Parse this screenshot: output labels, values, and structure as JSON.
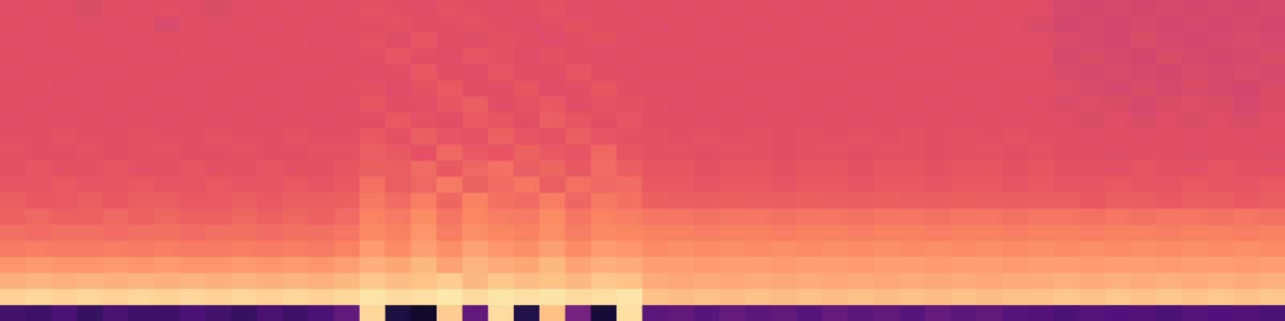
{
  "chart_data": {
    "type": "heatmap",
    "color": "magma",
    "zlim": [
      0,
      1
    ],
    "tick_labels": false,
    "cells": [
      [
        0.61,
        0.62,
        0.61,
        0.6,
        0.62,
        0.61,
        0.62,
        0.61,
        0.6,
        0.61,
        0.62,
        0.61,
        0.62,
        0.61,
        0.63,
        0.62,
        0.61,
        0.63,
        0.62,
        0.61,
        0.62,
        0.63,
        0.61,
        0.62,
        0.61,
        0.62,
        0.61,
        0.62,
        0.61,
        0.62,
        0.61,
        0.62,
        0.61,
        0.62,
        0.61,
        0.62,
        0.61,
        0.62,
        0.61,
        0.62,
        0.61,
        0.59,
        0.58,
        0.59,
        0.58,
        0.59,
        0.58,
        0.59,
        0.58,
        0.59
      ],
      [
        0.62,
        0.61,
        0.62,
        0.61,
        0.61,
        0.62,
        0.6,
        0.62,
        0.61,
        0.62,
        0.61,
        0.62,
        0.61,
        0.62,
        0.62,
        0.63,
        0.62,
        0.62,
        0.63,
        0.62,
        0.61,
        0.62,
        0.63,
        0.62,
        0.62,
        0.61,
        0.62,
        0.61,
        0.62,
        0.61,
        0.62,
        0.61,
        0.62,
        0.61,
        0.62,
        0.61,
        0.62,
        0.61,
        0.62,
        0.61,
        0.6,
        0.58,
        0.59,
        0.58,
        0.59,
        0.58,
        0.59,
        0.58,
        0.59,
        0.58
      ],
      [
        0.61,
        0.61,
        0.62,
        0.62,
        0.61,
        0.61,
        0.62,
        0.62,
        0.61,
        0.61,
        0.62,
        0.62,
        0.61,
        0.61,
        0.63,
        0.61,
        0.64,
        0.62,
        0.61,
        0.63,
        0.62,
        0.61,
        0.62,
        0.63,
        0.61,
        0.62,
        0.62,
        0.61,
        0.61,
        0.62,
        0.62,
        0.61,
        0.61,
        0.62,
        0.62,
        0.61,
        0.61,
        0.62,
        0.62,
        0.61,
        0.61,
        0.6,
        0.59,
        0.58,
        0.6,
        0.59,
        0.58,
        0.59,
        0.6,
        0.59
      ],
      [
        0.62,
        0.61,
        0.61,
        0.62,
        0.62,
        0.61,
        0.61,
        0.62,
        0.62,
        0.61,
        0.61,
        0.62,
        0.62,
        0.61,
        0.62,
        0.64,
        0.62,
        0.61,
        0.64,
        0.63,
        0.61,
        0.63,
        0.62,
        0.61,
        0.62,
        0.61,
        0.61,
        0.62,
        0.62,
        0.61,
        0.61,
        0.62,
        0.62,
        0.61,
        0.61,
        0.62,
        0.62,
        0.61,
        0.61,
        0.62,
        0.62,
        0.59,
        0.6,
        0.59,
        0.58,
        0.6,
        0.59,
        0.58,
        0.59,
        0.6
      ],
      [
        0.61,
        0.62,
        0.62,
        0.61,
        0.61,
        0.62,
        0.62,
        0.61,
        0.61,
        0.62,
        0.62,
        0.61,
        0.61,
        0.62,
        0.61,
        0.62,
        0.65,
        0.62,
        0.61,
        0.64,
        0.62,
        0.62,
        0.64,
        0.62,
        0.61,
        0.62,
        0.62,
        0.61,
        0.61,
        0.62,
        0.62,
        0.61,
        0.61,
        0.62,
        0.62,
        0.61,
        0.61,
        0.62,
        0.62,
        0.61,
        0.61,
        0.6,
        0.59,
        0.6,
        0.59,
        0.58,
        0.6,
        0.59,
        0.6,
        0.59
      ],
      [
        0.62,
        0.62,
        0.61,
        0.61,
        0.62,
        0.62,
        0.61,
        0.61,
        0.62,
        0.62,
        0.61,
        0.61,
        0.62,
        0.62,
        0.63,
        0.61,
        0.63,
        0.65,
        0.62,
        0.62,
        0.64,
        0.61,
        0.62,
        0.64,
        0.62,
        0.61,
        0.61,
        0.62,
        0.62,
        0.61,
        0.61,
        0.62,
        0.62,
        0.61,
        0.61,
        0.62,
        0.62,
        0.61,
        0.61,
        0.62,
        0.62,
        0.61,
        0.6,
        0.59,
        0.6,
        0.59,
        0.6,
        0.59,
        0.58,
        0.6
      ],
      [
        0.62,
        0.61,
        0.62,
        0.61,
        0.62,
        0.61,
        0.62,
        0.61,
        0.62,
        0.61,
        0.62,
        0.61,
        0.62,
        0.61,
        0.64,
        0.62,
        0.62,
        0.64,
        0.66,
        0.62,
        0.63,
        0.65,
        0.62,
        0.63,
        0.63,
        0.62,
        0.61,
        0.62,
        0.61,
        0.62,
        0.61,
        0.62,
        0.61,
        0.62,
        0.61,
        0.62,
        0.61,
        0.62,
        0.61,
        0.62,
        0.61,
        0.6,
        0.61,
        0.6,
        0.59,
        0.6,
        0.61,
        0.6,
        0.59,
        0.6
      ],
      [
        0.61,
        0.62,
        0.61,
        0.62,
        0.61,
        0.62,
        0.61,
        0.62,
        0.61,
        0.62,
        0.61,
        0.62,
        0.61,
        0.62,
        0.62,
        0.65,
        0.63,
        0.62,
        0.65,
        0.64,
        0.62,
        0.66,
        0.64,
        0.62,
        0.64,
        0.62,
        0.62,
        0.61,
        0.62,
        0.61,
        0.62,
        0.61,
        0.62,
        0.61,
        0.62,
        0.61,
        0.62,
        0.61,
        0.62,
        0.61,
        0.62,
        0.61,
        0.6,
        0.61,
        0.6,
        0.61,
        0.6,
        0.61,
        0.6,
        0.61
      ],
      [
        0.62,
        0.62,
        0.63,
        0.62,
        0.62,
        0.63,
        0.62,
        0.62,
        0.63,
        0.62,
        0.62,
        0.63,
        0.62,
        0.62,
        0.65,
        0.63,
        0.66,
        0.64,
        0.63,
        0.67,
        0.64,
        0.63,
        0.66,
        0.64,
        0.63,
        0.63,
        0.62,
        0.63,
        0.62,
        0.63,
        0.62,
        0.63,
        0.62,
        0.63,
        0.62,
        0.63,
        0.62,
        0.63,
        0.62,
        0.63,
        0.62,
        0.62,
        0.61,
        0.62,
        0.61,
        0.62,
        0.61,
        0.62,
        0.61,
        0.62
      ],
      [
        0.63,
        0.62,
        0.62,
        0.63,
        0.62,
        0.63,
        0.63,
        0.62,
        0.62,
        0.63,
        0.62,
        0.62,
        0.63,
        0.63,
        0.66,
        0.65,
        0.63,
        0.68,
        0.65,
        0.64,
        0.67,
        0.65,
        0.64,
        0.68,
        0.64,
        0.63,
        0.63,
        0.62,
        0.63,
        0.63,
        0.62,
        0.63,
        0.63,
        0.62,
        0.63,
        0.63,
        0.62,
        0.63,
        0.63,
        0.62,
        0.63,
        0.62,
        0.62,
        0.61,
        0.62,
        0.62,
        0.61,
        0.62,
        0.62,
        0.61
      ],
      [
        0.63,
        0.64,
        0.63,
        0.63,
        0.64,
        0.63,
        0.63,
        0.64,
        0.63,
        0.63,
        0.64,
        0.63,
        0.63,
        0.64,
        0.67,
        0.66,
        0.69,
        0.65,
        0.68,
        0.7,
        0.66,
        0.68,
        0.65,
        0.69,
        0.66,
        0.64,
        0.64,
        0.63,
        0.64,
        0.64,
        0.63,
        0.64,
        0.64,
        0.63,
        0.64,
        0.64,
        0.63,
        0.64,
        0.64,
        0.63,
        0.64,
        0.63,
        0.63,
        0.63,
        0.64,
        0.63,
        0.63,
        0.64,
        0.63,
        0.63
      ],
      [
        0.64,
        0.64,
        0.65,
        0.64,
        0.64,
        0.65,
        0.64,
        0.64,
        0.65,
        0.64,
        0.64,
        0.65,
        0.64,
        0.65,
        0.7,
        0.66,
        0.68,
        0.72,
        0.67,
        0.69,
        0.71,
        0.66,
        0.7,
        0.68,
        0.69,
        0.65,
        0.65,
        0.64,
        0.65,
        0.65,
        0.64,
        0.65,
        0.65,
        0.64,
        0.65,
        0.65,
        0.64,
        0.65,
        0.65,
        0.64,
        0.65,
        0.64,
        0.64,
        0.65,
        0.64,
        0.64,
        0.65,
        0.64,
        0.64,
        0.65
      ],
      [
        0.66,
        0.65,
        0.65,
        0.66,
        0.65,
        0.66,
        0.66,
        0.65,
        0.65,
        0.66,
        0.65,
        0.66,
        0.66,
        0.67,
        0.72,
        0.69,
        0.73,
        0.68,
        0.74,
        0.7,
        0.69,
        0.73,
        0.68,
        0.72,
        0.7,
        0.67,
        0.66,
        0.66,
        0.67,
        0.66,
        0.66,
        0.67,
        0.66,
        0.66,
        0.67,
        0.66,
        0.66,
        0.67,
        0.66,
        0.66,
        0.66,
        0.66,
        0.65,
        0.66,
        0.66,
        0.65,
        0.66,
        0.66,
        0.65,
        0.66
      ],
      [
        0.67,
        0.68,
        0.67,
        0.67,
        0.68,
        0.67,
        0.68,
        0.67,
        0.67,
        0.68,
        0.67,
        0.68,
        0.67,
        0.69,
        0.74,
        0.72,
        0.76,
        0.71,
        0.75,
        0.73,
        0.72,
        0.76,
        0.71,
        0.74,
        0.73,
        0.71,
        0.71,
        0.7,
        0.71,
        0.71,
        0.7,
        0.71,
        0.71,
        0.7,
        0.71,
        0.71,
        0.7,
        0.71,
        0.71,
        0.7,
        0.71,
        0.71,
        0.7,
        0.71,
        0.7,
        0.71,
        0.71,
        0.7,
        0.71,
        0.7
      ],
      [
        0.7,
        0.69,
        0.7,
        0.7,
        0.69,
        0.7,
        0.7,
        0.69,
        0.7,
        0.7,
        0.69,
        0.7,
        0.7,
        0.71,
        0.76,
        0.74,
        0.78,
        0.73,
        0.77,
        0.75,
        0.74,
        0.77,
        0.73,
        0.76,
        0.75,
        0.74,
        0.74,
        0.73,
        0.74,
        0.74,
        0.73,
        0.74,
        0.74,
        0.73,
        0.74,
        0.74,
        0.73,
        0.74,
        0.74,
        0.73,
        0.74,
        0.74,
        0.73,
        0.74,
        0.74,
        0.73,
        0.74,
        0.74,
        0.73,
        0.74
      ],
      [
        0.72,
        0.73,
        0.72,
        0.72,
        0.73,
        0.72,
        0.73,
        0.72,
        0.72,
        0.73,
        0.72,
        0.73,
        0.72,
        0.74,
        0.79,
        0.76,
        0.8,
        0.77,
        0.81,
        0.78,
        0.77,
        0.8,
        0.76,
        0.79,
        0.78,
        0.76,
        0.77,
        0.76,
        0.77,
        0.76,
        0.77,
        0.76,
        0.77,
        0.76,
        0.77,
        0.76,
        0.77,
        0.76,
        0.77,
        0.76,
        0.77,
        0.76,
        0.77,
        0.76,
        0.77,
        0.76,
        0.77,
        0.76,
        0.77,
        0.76
      ],
      [
        0.78,
        0.79,
        0.78,
        0.78,
        0.79,
        0.78,
        0.79,
        0.78,
        0.78,
        0.79,
        0.78,
        0.79,
        0.78,
        0.8,
        0.84,
        0.82,
        0.86,
        0.81,
        0.85,
        0.83,
        0.82,
        0.86,
        0.81,
        0.84,
        0.83,
        0.8,
        0.8,
        0.79,
        0.8,
        0.8,
        0.79,
        0.8,
        0.8,
        0.79,
        0.8,
        0.8,
        0.79,
        0.8,
        0.8,
        0.79,
        0.8,
        0.8,
        0.79,
        0.8,
        0.8,
        0.79,
        0.8,
        0.8,
        0.79,
        0.8
      ],
      [
        0.84,
        0.85,
        0.84,
        0.85,
        0.84,
        0.85,
        0.84,
        0.85,
        0.84,
        0.85,
        0.84,
        0.85,
        0.84,
        0.86,
        0.89,
        0.87,
        0.88,
        0.9,
        0.86,
        0.89,
        0.87,
        0.88,
        0.86,
        0.89,
        0.88,
        0.83,
        0.82,
        0.83,
        0.82,
        0.83,
        0.82,
        0.83,
        0.82,
        0.83,
        0.82,
        0.83,
        0.82,
        0.83,
        0.82,
        0.83,
        0.83,
        0.84,
        0.83,
        0.84,
        0.83,
        0.84,
        0.83,
        0.84,
        0.83,
        0.84
      ],
      [
        0.91,
        0.92,
        0.91,
        0.92,
        0.91,
        0.92,
        0.91,
        0.92,
        0.91,
        0.92,
        0.91,
        0.92,
        0.91,
        0.92,
        0.95,
        0.93,
        0.94,
        0.96,
        0.93,
        0.95,
        0.94,
        0.95,
        0.93,
        0.94,
        0.95,
        0.88,
        0.87,
        0.88,
        0.87,
        0.88,
        0.87,
        0.88,
        0.87,
        0.88,
        0.87,
        0.88,
        0.87,
        0.88,
        0.87,
        0.88,
        0.88,
        0.89,
        0.88,
        0.89,
        0.88,
        0.89,
        0.88,
        0.89,
        0.88,
        0.89
      ],
      [
        0.22,
        0.2,
        0.24,
        0.19,
        0.23,
        0.21,
        0.2,
        0.24,
        0.22,
        0.19,
        0.23,
        0.21,
        0.24,
        0.3,
        0.92,
        0.12,
        0.08,
        0.9,
        0.3,
        0.93,
        0.14,
        0.88,
        0.35,
        0.1,
        0.94,
        0.28,
        0.3,
        0.27,
        0.31,
        0.28,
        0.3,
        0.27,
        0.31,
        0.28,
        0.3,
        0.27,
        0.31,
        0.28,
        0.3,
        0.27,
        0.26,
        0.24,
        0.27,
        0.25,
        0.26,
        0.24,
        0.27,
        0.25,
        0.26,
        0.24
      ]
    ]
  }
}
